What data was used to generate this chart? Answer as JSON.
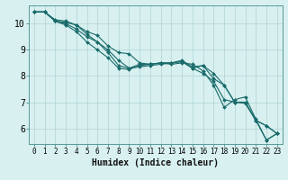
{
  "title": "",
  "xlabel": "Humidex (Indice chaleur)",
  "ylabel": "",
  "bg_color": "#d8f0f0",
  "grid_color": "#b0d4d4",
  "line_color": "#1a6b6b",
  "marker_color": "#1a6b6b",
  "xlim": [
    -0.5,
    23.5
  ],
  "ylim": [
    5.4,
    10.7
  ],
  "yticks": [
    6,
    7,
    8,
    9,
    10
  ],
  "xticks": [
    0,
    1,
    2,
    3,
    4,
    5,
    6,
    7,
    8,
    9,
    10,
    11,
    12,
    13,
    14,
    15,
    16,
    17,
    18,
    19,
    20,
    21,
    22,
    23
  ],
  "series": [
    [
      10.45,
      10.45,
      10.1,
      10.05,
      9.95,
      9.7,
      9.55,
      9.15,
      8.9,
      8.85,
      8.5,
      8.45,
      8.5,
      8.45,
      8.5,
      8.45,
      8.2,
      7.65,
      6.8,
      7.1,
      7.2,
      6.35,
      5.55,
      5.8
    ],
    [
      10.45,
      10.45,
      10.1,
      10.0,
      9.8,
      9.5,
      9.3,
      8.9,
      8.4,
      8.3,
      8.45,
      8.45,
      8.5,
      8.5,
      8.55,
      8.3,
      8.1,
      7.8,
      7.1,
      7.0,
      7.0,
      6.3,
      5.55,
      5.8
    ],
    [
      10.45,
      10.45,
      10.1,
      9.95,
      9.7,
      9.3,
      9.0,
      8.7,
      8.3,
      8.25,
      8.4,
      8.45,
      8.5,
      8.5,
      8.6,
      8.35,
      8.4,
      8.1,
      7.65,
      7.0,
      7.0,
      6.3,
      6.1,
      5.8
    ],
    [
      10.45,
      10.45,
      10.15,
      10.1,
      9.95,
      9.6,
      9.3,
      9.0,
      8.6,
      8.3,
      8.35,
      8.4,
      8.45,
      8.5,
      8.55,
      8.3,
      8.4,
      7.9,
      7.65,
      7.0,
      6.95,
      6.3,
      6.1,
      5.8
    ]
  ],
  "font_family": "monospace",
  "xtick_fontsize": 5.5,
  "ytick_fontsize": 7,
  "xlabel_fontsize": 7
}
